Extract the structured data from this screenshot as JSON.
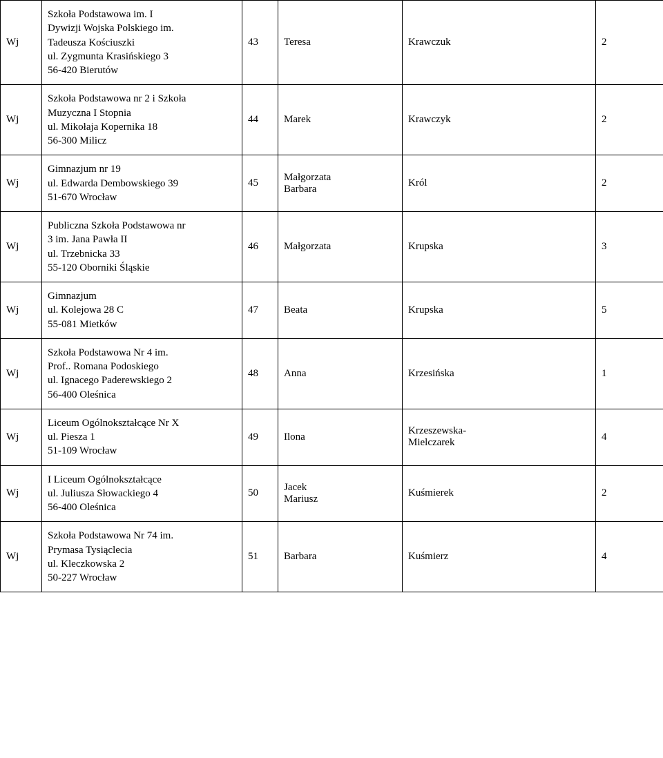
{
  "rows": [
    {
      "wj": "Wj",
      "school": [
        "Szkoła Podstawowa im. I",
        "Dywizji Wojska Polskiego im.",
        "Tadeusza Kościuszki",
        "ul. Zygmunta Krasińskiego 3",
        "56-420 Bierutów"
      ],
      "num": "43",
      "fname": "Teresa",
      "lname": "Krawczuk",
      "score": "2"
    },
    {
      "wj": "Wj",
      "school": [
        "Szkoła Podstawowa nr 2 i Szkoła",
        "Muzyczna I Stopnia",
        "ul. Mikołaja Kopernika 18",
        "56-300 Milicz"
      ],
      "num": "44",
      "fname": "Marek",
      "lname": "Krawczyk",
      "score": "2"
    },
    {
      "wj": "Wj",
      "school": [
        "Gimnazjum nr 19",
        "ul. Edwarda Dembowskiego 39",
        "51-670 Wrocław"
      ],
      "num": "45",
      "fname": "Małgorzata\nBarbara",
      "lname": "Król",
      "score": "2"
    },
    {
      "wj": "Wj",
      "school": [
        "Publiczna Szkoła Podstawowa nr",
        "3 im. Jana Pawła II",
        "ul. Trzebnicka 33",
        "55-120 Oborniki Śląskie"
      ],
      "num": "46",
      "fname": "Małgorzata",
      "lname": "Krupska",
      "score": "3"
    },
    {
      "wj": "Wj",
      "school": [
        "Gimnazjum",
        "ul. Kolejowa 28 C",
        "55-081 Mietków"
      ],
      "num": "47",
      "fname": "Beata",
      "lname": "Krupska",
      "score": "5"
    },
    {
      "wj": "Wj",
      "school": [
        "Szkoła Podstawowa Nr 4 im.",
        "Prof.. Romana Podoskiego",
        "ul. Ignacego Paderewskiego 2",
        "56-400 Oleśnica"
      ],
      "num": "48",
      "fname": "Anna",
      "lname": "Krzesińska",
      "score": "1"
    },
    {
      "wj": "Wj",
      "school": [
        "Liceum Ogólnokształcące Nr X",
        "ul. Piesza 1",
        "51-109 Wrocław"
      ],
      "num": "49",
      "fname": "Ilona",
      "lname": "Krzeszewska-\nMielczarek",
      "score": "4"
    },
    {
      "wj": "Wj",
      "school": [
        "I Liceum Ogólnokształcące",
        "ul. Juliusza Słowackiego 4",
        "56-400 Oleśnica"
      ],
      "num": "50",
      "fname": "Jacek\nMariusz",
      "lname": "Kuśmierek",
      "score": "2"
    },
    {
      "wj": "Wj",
      "school": [
        "Szkoła Podstawowa Nr 74 im.",
        "Prymasa Tysiąclecia",
        "ul. Kleczkowska 2",
        "50-227 Wrocław"
      ],
      "num": "51",
      "fname": "Barbara",
      "lname": "Kuśmierz",
      "score": "4"
    }
  ]
}
